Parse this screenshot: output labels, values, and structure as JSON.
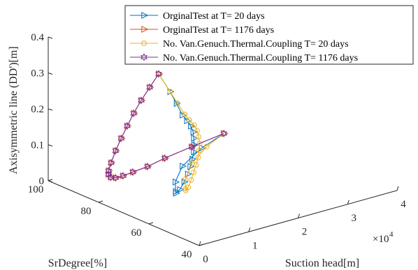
{
  "chart_data": {
    "type": "line3d",
    "axes": {
      "x": {
        "label": "Suction head[m]",
        "ticks": [
          0,
          1,
          2,
          3,
          4
        ],
        "range": [
          0,
          4
        ],
        "exponent_label": "×10",
        "exponent_power": "4"
      },
      "y": {
        "label": "SrDegree[%]",
        "ticks": [
          40,
          60,
          80,
          100
        ],
        "range": [
          40,
          100
        ]
      },
      "z": {
        "label": "Axisymmetric line (DD')[m]",
        "ticks": [
          0,
          0.1,
          0.2,
          0.3,
          0.4
        ],
        "tick_labels": [
          "0",
          "0.1",
          "0.2",
          "0.3",
          "0.4"
        ],
        "range": [
          0,
          0.4
        ]
      }
    },
    "legend_position": "top-right",
    "series": [
      {
        "name": "OrginalTest at T= 20 days",
        "color": "#0072BD",
        "marker": "triangle-right",
        "points": [
          [
            0.3,
            62,
            0.4
          ],
          [
            0.55,
            62.4,
            0.34
          ],
          [
            0.7,
            62.8,
            0.3
          ],
          [
            0.85,
            63.4,
            0.26
          ],
          [
            0.95,
            63.6,
            0.24
          ],
          [
            1.05,
            64,
            0.22
          ],
          [
            1.12,
            64.4,
            0.2
          ],
          [
            1.15,
            64.8,
            0.18
          ],
          [
            1.17,
            65,
            0.16
          ],
          [
            1.17,
            65.2,
            0.14
          ],
          [
            1.15,
            65.4,
            0.12
          ],
          [
            1.12,
            65.6,
            0.1
          ],
          [
            1.08,
            65.8,
            0.08
          ],
          [
            1.02,
            66,
            0.06
          ],
          [
            0.95,
            66.4,
            0.04
          ],
          [
            0.9,
            67,
            0.03
          ],
          [
            1.05,
            70,
            0.02
          ],
          [
            1.4,
            77,
            0.012
          ],
          [
            2.0,
            86,
            0.006
          ],
          [
            2.8,
            94,
            0.002
          ],
          [
            3.5,
            99,
            0
          ]
        ]
      },
      {
        "name": "OrginalTest at T= 1176 days",
        "color": "#D95319",
        "marker": "triangle-right",
        "points": [
          [
            0.3,
            62,
            0.4
          ],
          [
            0.22,
            64,
            0.36
          ],
          [
            0.15,
            66,
            0.32
          ],
          [
            0.1,
            68,
            0.28
          ],
          [
            0.07,
            70,
            0.24
          ],
          [
            0.05,
            72,
            0.2
          ],
          [
            0.04,
            74,
            0.16
          ],
          [
            0.05,
            76,
            0.12
          ],
          [
            0.1,
            78,
            0.09
          ],
          [
            0.2,
            80,
            0.07
          ],
          [
            0.35,
            82,
            0.05
          ],
          [
            0.55,
            84,
            0.035
          ],
          [
            0.8,
            86,
            0.025
          ],
          [
            1.1,
            88,
            0.018
          ],
          [
            1.5,
            90,
            0.012
          ],
          [
            2.0,
            93,
            0.007
          ],
          [
            2.7,
            96,
            0.003
          ],
          [
            3.5,
            99,
            0
          ]
        ]
      },
      {
        "name": "No. Van.Genuch.Thermal.Coupling T= 20 days",
        "color": "#EDB120",
        "marker": "circle",
        "points": [
          [
            0.3,
            62,
            0.4
          ],
          [
            0.55,
            62.4,
            0.34
          ],
          [
            0.72,
            62.8,
            0.3
          ],
          [
            0.9,
            63.4,
            0.26
          ],
          [
            1.0,
            63.6,
            0.24
          ],
          [
            1.12,
            64,
            0.22
          ],
          [
            1.2,
            64.4,
            0.2
          ],
          [
            1.25,
            64.8,
            0.18
          ],
          [
            1.28,
            65,
            0.16
          ],
          [
            1.28,
            65.2,
            0.14
          ],
          [
            1.27,
            65.4,
            0.12
          ],
          [
            1.24,
            65.6,
            0.1
          ],
          [
            1.2,
            65.8,
            0.08
          ],
          [
            1.16,
            66,
            0.06
          ],
          [
            1.12,
            66.4,
            0.04
          ],
          [
            1.1,
            67,
            0.03
          ],
          [
            1.25,
            70,
            0.02
          ],
          [
            1.6,
            77,
            0.012
          ],
          [
            2.2,
            86,
            0.006
          ],
          [
            2.9,
            94,
            0.002
          ],
          [
            3.5,
            99,
            0
          ]
        ]
      },
      {
        "name": "No. Van.Genuch.Thermal.Coupling T= 1176 days",
        "color": "#7E2F8E",
        "marker": "hexagram",
        "points": [
          [
            0.3,
            62,
            0.4
          ],
          [
            0.22,
            64,
            0.36
          ],
          [
            0.15,
            66,
            0.32
          ],
          [
            0.1,
            68,
            0.28
          ],
          [
            0.07,
            70,
            0.24
          ],
          [
            0.05,
            72,
            0.2
          ],
          [
            0.04,
            74,
            0.16
          ],
          [
            0.05,
            76,
            0.12
          ],
          [
            0.1,
            78,
            0.09
          ],
          [
            0.2,
            80,
            0.07
          ],
          [
            0.35,
            82,
            0.05
          ],
          [
            0.55,
            84,
            0.035
          ],
          [
            0.8,
            86,
            0.025
          ],
          [
            1.1,
            88,
            0.018
          ],
          [
            1.5,
            90,
            0.012
          ],
          [
            2.0,
            93,
            0.007
          ],
          [
            2.7,
            96,
            0.003
          ],
          [
            3.5,
            99,
            0
          ]
        ]
      }
    ]
  }
}
